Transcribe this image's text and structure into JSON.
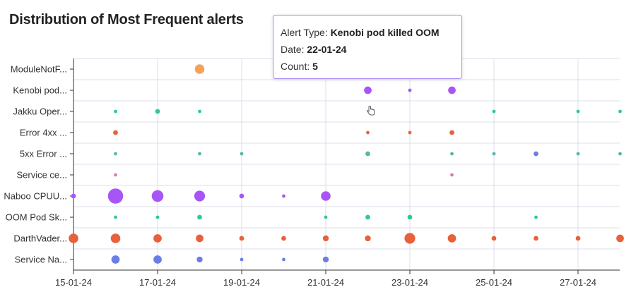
{
  "title": "Distribution of Most Frequent alerts",
  "chart_data": {
    "type": "scatter",
    "title": "Distribution of Most Frequent alerts",
    "xlabel": "",
    "ylabel": "",
    "x_tick_labels": [
      "15-01-24",
      "17-01-24",
      "19-01-24",
      "21-01-24",
      "23-01-24",
      "25-01-24",
      "27-01-24"
    ],
    "x_dates": [
      "15-01-24",
      "16-01-24",
      "17-01-24",
      "18-01-24",
      "19-01-24",
      "20-01-24",
      "21-01-24",
      "22-01-24",
      "23-01-24",
      "24-01-24",
      "25-01-24",
      "26-01-24",
      "27-01-24",
      "28-01-24"
    ],
    "categories": [
      "ModuleNotF...",
      "Kenobi pod...",
      "Jakku Oper...",
      "Error 4xx ...",
      "5xx Error ...",
      "Service ce...",
      "Naboo CPUU...",
      "OOM Pod Sk...",
      "DarthVader...",
      "Service Na..."
    ],
    "grid": true,
    "legend": "none",
    "points": [
      {
        "category": "ModuleNotF...",
        "date": "18-01-24",
        "count": 8,
        "color": "#f4a259"
      },
      {
        "category": "Kenobi pod...",
        "date": "22-01-24",
        "count": 5,
        "color": "#a855f7"
      },
      {
        "category": "Kenobi pod...",
        "date": "23-01-24",
        "count": 1,
        "color": "#a855f7"
      },
      {
        "category": "Kenobi pod...",
        "date": "24-01-24",
        "count": 5,
        "color": "#a855f7"
      },
      {
        "category": "Jakku Oper...",
        "date": "16-01-24",
        "count": 1,
        "color": "#2dc99a"
      },
      {
        "category": "Jakku Oper...",
        "date": "17-01-24",
        "count": 2,
        "color": "#2dc99a"
      },
      {
        "category": "Jakku Oper...",
        "date": "18-01-24",
        "count": 1,
        "color": "#2dc99a"
      },
      {
        "category": "Jakku Oper...",
        "date": "25-01-24",
        "count": 1,
        "color": "#2dc99a"
      },
      {
        "category": "Jakku Oper...",
        "date": "27-01-24",
        "count": 1,
        "color": "#2dc99a"
      },
      {
        "category": "Jakku Oper...",
        "date": "28-01-24",
        "count": 1,
        "color": "#2dc99a"
      },
      {
        "category": "Error 4xx ...",
        "date": "16-01-24",
        "count": 2,
        "color": "#e8603c"
      },
      {
        "category": "Error 4xx ...",
        "date": "22-01-24",
        "count": 1,
        "color": "#e8603c"
      },
      {
        "category": "Error 4xx ...",
        "date": "23-01-24",
        "count": 1,
        "color": "#e8603c"
      },
      {
        "category": "Error 4xx ...",
        "date": "24-01-24",
        "count": 2,
        "color": "#e8603c"
      },
      {
        "category": "5xx Error ...",
        "date": "16-01-24",
        "count": 1,
        "color": "#5ab4ac"
      },
      {
        "category": "5xx Error ...",
        "date": "18-01-24",
        "count": 1,
        "color": "#5ab4ac"
      },
      {
        "category": "5xx Error ...",
        "date": "19-01-24",
        "count": 1,
        "color": "#5ab4ac"
      },
      {
        "category": "5xx Error ...",
        "date": "22-01-24",
        "count": 2,
        "color": "#5ab4ac"
      },
      {
        "category": "5xx Error ...",
        "date": "24-01-24",
        "count": 1,
        "color": "#5ab4ac"
      },
      {
        "category": "5xx Error ...",
        "date": "25-01-24",
        "count": 1,
        "color": "#5ab4ac"
      },
      {
        "category": "5xx Error ...",
        "date": "26-01-24",
        "count": 2,
        "color": "#6a7ee8"
      },
      {
        "category": "5xx Error ...",
        "date": "27-01-24",
        "count": 1,
        "color": "#5ab4ac"
      },
      {
        "category": "5xx Error ...",
        "date": "28-01-24",
        "count": 1,
        "color": "#5ab4ac"
      },
      {
        "category": "Service ce...",
        "date": "16-01-24",
        "count": 1,
        "color": "#e879a0"
      },
      {
        "category": "Service ce...",
        "date": "24-01-24",
        "count": 1,
        "color": "#e879a0"
      },
      {
        "category": "Naboo CPUU...",
        "date": "15-01-24",
        "count": 2,
        "color": "#a855f7"
      },
      {
        "category": "Naboo CPUU...",
        "date": "16-01-24",
        "count": 20,
        "color": "#a855f7"
      },
      {
        "category": "Naboo CPUU...",
        "date": "17-01-24",
        "count": 12,
        "color": "#a855f7"
      },
      {
        "category": "Naboo CPUU...",
        "date": "18-01-24",
        "count": 10,
        "color": "#a855f7"
      },
      {
        "category": "Naboo CPUU...",
        "date": "19-01-24",
        "count": 2,
        "color": "#a855f7"
      },
      {
        "category": "Naboo CPUU...",
        "date": "20-01-24",
        "count": 1,
        "color": "#a855f7"
      },
      {
        "category": "Naboo CPUU...",
        "date": "21-01-24",
        "count": 8,
        "color": "#a855f7"
      },
      {
        "category": "OOM Pod Sk...",
        "date": "16-01-24",
        "count": 1,
        "color": "#2dc99a"
      },
      {
        "category": "OOM Pod Sk...",
        "date": "17-01-24",
        "count": 1,
        "color": "#2dc99a"
      },
      {
        "category": "OOM Pod Sk...",
        "date": "18-01-24",
        "count": 2,
        "color": "#2dc99a"
      },
      {
        "category": "OOM Pod Sk...",
        "date": "21-01-24",
        "count": 1,
        "color": "#2dc99a"
      },
      {
        "category": "OOM Pod Sk...",
        "date": "22-01-24",
        "count": 2,
        "color": "#2dc99a"
      },
      {
        "category": "OOM Pod Sk...",
        "date": "23-01-24",
        "count": 2,
        "color": "#2dc99a"
      },
      {
        "category": "OOM Pod Sk...",
        "date": "26-01-24",
        "count": 1,
        "color": "#2dc99a"
      },
      {
        "category": "DarthVader...",
        "date": "15-01-24",
        "count": 8,
        "color": "#e8603c"
      },
      {
        "category": "DarthVader...",
        "date": "16-01-24",
        "count": 8,
        "color": "#e8603c"
      },
      {
        "category": "DarthVader...",
        "date": "17-01-24",
        "count": 6,
        "color": "#e8603c"
      },
      {
        "category": "DarthVader...",
        "date": "18-01-24",
        "count": 5,
        "color": "#e8603c"
      },
      {
        "category": "DarthVader...",
        "date": "19-01-24",
        "count": 2,
        "color": "#e8603c"
      },
      {
        "category": "DarthVader...",
        "date": "20-01-24",
        "count": 2,
        "color": "#e8603c"
      },
      {
        "category": "DarthVader...",
        "date": "21-01-24",
        "count": 3,
        "color": "#e8603c"
      },
      {
        "category": "DarthVader...",
        "date": "22-01-24",
        "count": 3,
        "color": "#e8603c"
      },
      {
        "category": "DarthVader...",
        "date": "23-01-24",
        "count": 10,
        "color": "#e8603c"
      },
      {
        "category": "DarthVader...",
        "date": "24-01-24",
        "count": 6,
        "color": "#e8603c"
      },
      {
        "category": "DarthVader...",
        "date": "25-01-24",
        "count": 2,
        "color": "#e8603c"
      },
      {
        "category": "DarthVader...",
        "date": "26-01-24",
        "count": 2,
        "color": "#e8603c"
      },
      {
        "category": "DarthVader...",
        "date": "27-01-24",
        "count": 2,
        "color": "#e8603c"
      },
      {
        "category": "DarthVader...",
        "date": "28-01-24",
        "count": 5,
        "color": "#e8603c"
      },
      {
        "category": "Service Na...",
        "date": "16-01-24",
        "count": 6,
        "color": "#6a7ee8"
      },
      {
        "category": "Service Na...",
        "date": "17-01-24",
        "count": 6,
        "color": "#6a7ee8"
      },
      {
        "category": "Service Na...",
        "date": "18-01-24",
        "count": 3,
        "color": "#6a7ee8"
      },
      {
        "category": "Service Na...",
        "date": "19-01-24",
        "count": 1,
        "color": "#6a7ee8"
      },
      {
        "category": "Service Na...",
        "date": "20-01-24",
        "count": 1,
        "color": "#6a7ee8"
      },
      {
        "category": "Service Na...",
        "date": "21-01-24",
        "count": 3,
        "color": "#6a7ee8"
      }
    ]
  },
  "tooltip": {
    "alert_type_label": "Alert Type:",
    "alert_type_value": "Kenobi pod killed OOM",
    "date_label": "Date:",
    "date_value": "22-01-24",
    "count_label": "Count:",
    "count_value": "5"
  },
  "colors": {
    "grid": "#dcdcec",
    "axis": "#333333",
    "tooltip_border": "#a78bfa"
  },
  "icons": {
    "cursor": "hand-pointer-icon"
  }
}
